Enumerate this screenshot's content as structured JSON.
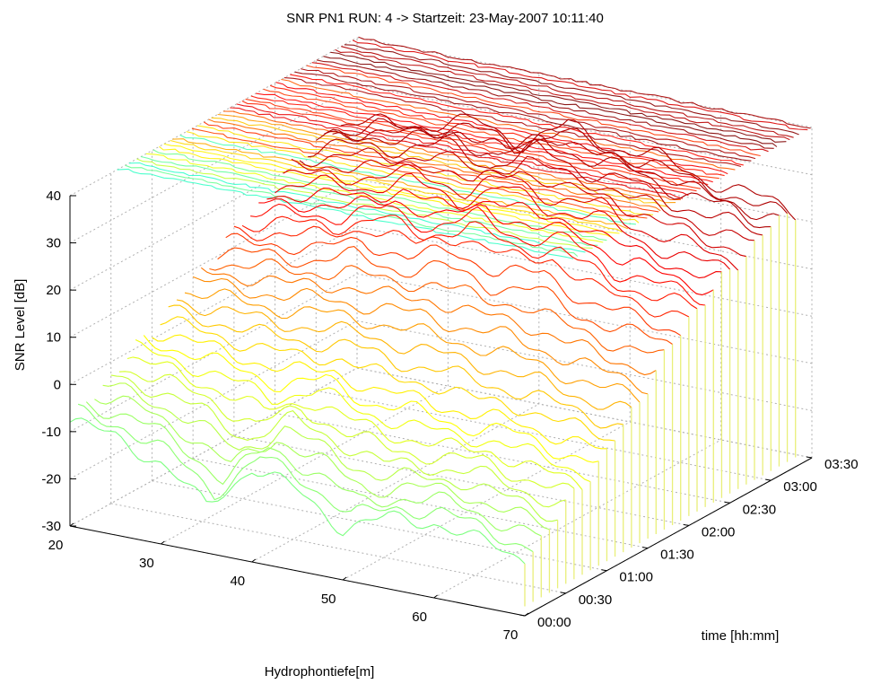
{
  "chart_data": {
    "type": "waterfall-3d",
    "title": "SNR PN1 RUN:  4 ->  Startzeit: 23-May-2007 10:11:40",
    "xlabel": "Hydrophontiefe[m]",
    "ylabel": "time [hh:mm]",
    "zlabel": "SNR Level [dB]",
    "x_ticks": [
      "20",
      "30",
      "40",
      "50",
      "60",
      "70"
    ],
    "x_range": [
      20,
      70
    ],
    "y_ticks": [
      "00:00",
      "00:30",
      "01:00",
      "01:30",
      "02:00",
      "02:30",
      "03:00",
      "03:30"
    ],
    "y_range_hours": [
      0,
      3.5
    ],
    "z_ticks": [
      "-30",
      "-20",
      "-10",
      "0",
      "10",
      "20",
      "30",
      "40"
    ],
    "z_range": [
      -30,
      40
    ],
    "grid": true,
    "colormap": "jet",
    "profile_count": 34,
    "sample_profiles": [
      {
        "time": "00:00",
        "depth": [
          20,
          25,
          30,
          35,
          40,
          45,
          50,
          55,
          60,
          65,
          70
        ],
        "snr": [
          -8,
          -9,
          -13,
          -20,
          -10,
          -13,
          -19,
          -15,
          -14,
          -16,
          -18
        ]
      },
      {
        "time": "01:00",
        "depth": [
          20,
          25,
          30,
          35,
          40,
          45,
          50,
          55,
          60,
          65,
          70
        ],
        "snr": [
          2,
          1,
          0,
          -1,
          1,
          -2,
          -1,
          -3,
          -2,
          -4,
          -5
        ]
      },
      {
        "time": "02:00",
        "depth": [
          20,
          25,
          30,
          35,
          40,
          45,
          50,
          55,
          60,
          65,
          70
        ],
        "snr": [
          13,
          15,
          16,
          20,
          18,
          22,
          19,
          21,
          16,
          15,
          14
        ]
      },
      {
        "time": "03:00",
        "depth": [
          20,
          25,
          30,
          35,
          40,
          45,
          50,
          55,
          60,
          65,
          70
        ],
        "snr": [
          23,
          26,
          27,
          30,
          27,
          33,
          30,
          30,
          27,
          26,
          24
        ]
      }
    ],
    "contour_plane_z": 40
  }
}
